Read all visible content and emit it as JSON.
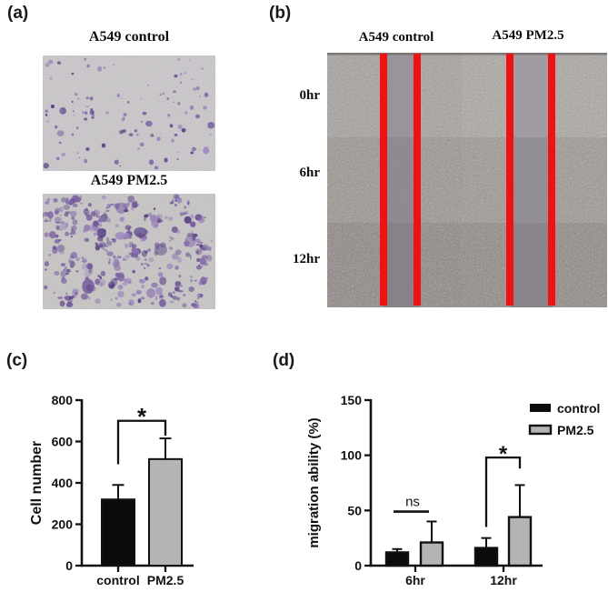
{
  "panels": {
    "a": {
      "letter": "(a)",
      "images": [
        {
          "title": "A549 control",
          "background": "#cdc9ce",
          "stain_palette": [
            "#8a71ad",
            "#6f5697",
            "#9b87bd",
            "#5d4687",
            "#7a62a1"
          ],
          "dot_count": 110,
          "density": "sparse"
        },
        {
          "title": "A549 PM2.5",
          "background": "#c9c6c6",
          "stain_palette": [
            "#8a71ad",
            "#6f5697",
            "#9b87bd",
            "#5d4687",
            "#7a62a1"
          ],
          "dot_count": 250,
          "density": "dense"
        }
      ]
    },
    "b": {
      "letter": "(b)",
      "col_headers": [
        "A549 control",
        "A549 PM2.5"
      ],
      "row_labels": [
        "0hr",
        "6hr",
        "12hr"
      ],
      "scratch_line_color": "#ee1212",
      "rows": [
        {
          "left": "#a6a19d",
          "right": "#aba7a4",
          "wound_left": "#959198",
          "wound_right": "#9e9aa1"
        },
        {
          "left": "#9b9590",
          "right": "#9d9793",
          "wound_left": "#8c8891",
          "wound_right": "#908c95"
        },
        {
          "left": "#8e8783",
          "right": "#908985",
          "wound_left": "#848088",
          "wound_right": "#87838b"
        }
      ]
    },
    "c": {
      "letter": "(c)"
    },
    "d": {
      "letter": "(d)"
    }
  },
  "chart_data": [
    {
      "panel": "(c)",
      "type": "bar",
      "categories": [
        "control",
        "PM2.5"
      ],
      "values": [
        320,
        515
      ],
      "errors_plus": [
        70,
        100
      ],
      "ylabel": "Cell number",
      "ylim": [
        0,
        800
      ],
      "yticks": [
        0,
        200,
        400,
        600,
        800
      ],
      "bar_colors": [
        "#0b0b0b",
        "#b4b4b4"
      ],
      "grid": false,
      "significance": [
        {
          "label": "*",
          "x1_index": 0,
          "x2_index": 1,
          "y": 700,
          "drop1_to": 490,
          "drop2_to": 628
        }
      ]
    },
    {
      "panel": "(d)",
      "type": "grouped-bar",
      "categories": [
        "6hr",
        "12hr"
      ],
      "series": [
        {
          "name": "control",
          "color": "#0b0b0b",
          "values": [
            12,
            16
          ],
          "errors_plus": [
            3,
            9
          ]
        },
        {
          "name": "PM2.5",
          "color": "#b4b4b4",
          "values": [
            21,
            44
          ],
          "errors_plus": [
            19,
            29
          ]
        }
      ],
      "ylabel": "migration ability (%)",
      "ylim": [
        0,
        150
      ],
      "yticks": [
        0,
        50,
        100,
        150
      ],
      "legend_position": "top-right",
      "grid": false,
      "significance": [
        {
          "label": "ns",
          "type": "line",
          "group_index": 0,
          "y": 49
        },
        {
          "label": "*",
          "type": "bracket",
          "group_index": 1,
          "y": 98,
          "drop1_to": 35,
          "drop2_to": 88
        }
      ]
    }
  ]
}
